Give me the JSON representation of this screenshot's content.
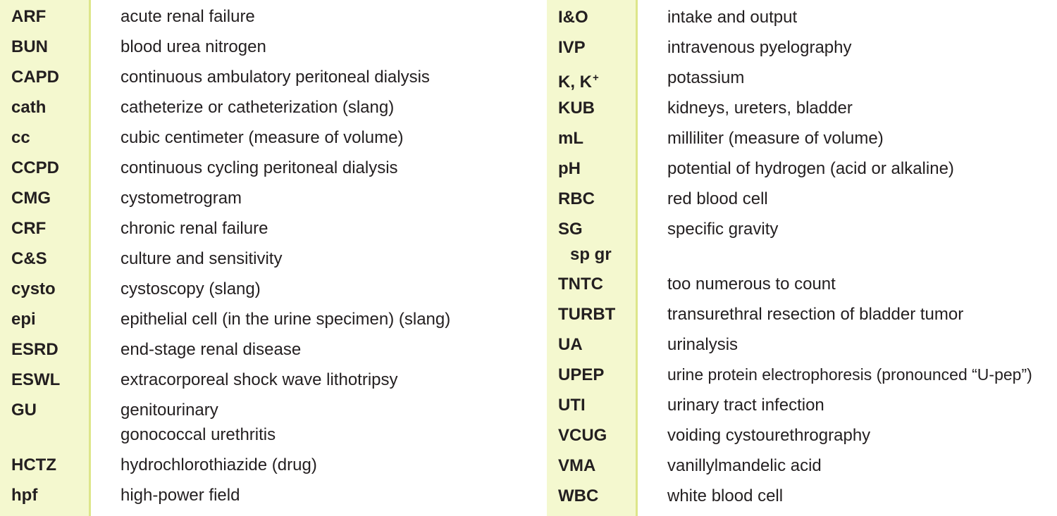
{
  "left_column": [
    {
      "abbr": "ARF",
      "def": "acute renal failure"
    },
    {
      "abbr": "BUN",
      "def": "blood urea nitrogen"
    },
    {
      "abbr": "CAPD",
      "def": "continuous ambulatory peritoneal dialysis"
    },
    {
      "abbr": "cath",
      "def": "catheterize or catheterization (slang)"
    },
    {
      "abbr": "cc",
      "def": "cubic centimeter (measure of volume)"
    },
    {
      "abbr": "CCPD",
      "def": "continuous cycling peritoneal dialysis"
    },
    {
      "abbr": "CMG",
      "def": "cystometrogram"
    },
    {
      "abbr": "CRF",
      "def": "chronic renal failure"
    },
    {
      "abbr": "C&S",
      "def": "culture and sensitivity"
    },
    {
      "abbr": "cysto",
      "def": "cystoscopy (slang)"
    },
    {
      "abbr": "epi",
      "def": "epithelial cell (in the urine specimen) (slang)"
    },
    {
      "abbr": "ESRD",
      "def": "end-stage renal disease"
    },
    {
      "abbr": "ESWL",
      "def": "extracorporeal shock wave lithotripsy"
    },
    {
      "abbr": "GU",
      "def": "genitourinary",
      "def2": "gonococcal urethritis"
    },
    {
      "abbr": "HCTZ",
      "def": "hydrochlorothiazide (drug)"
    },
    {
      "abbr": "hpf",
      "def": "high-power field"
    }
  ],
  "right_column": [
    {
      "abbr": "I&O",
      "def": "intake and output"
    },
    {
      "abbr": "IVP",
      "def": "intravenous pyelography"
    },
    {
      "abbr": "K, K",
      "abbr_sup": "+",
      "def": "potassium"
    },
    {
      "abbr": "KUB",
      "def": "kidneys, ureters, bladder"
    },
    {
      "abbr": "mL",
      "def": "milliliter (measure of volume)"
    },
    {
      "abbr": "pH",
      "def": "potential of hydrogen (acid or alkaline)"
    },
    {
      "abbr": "RBC",
      "def": "red blood cell"
    },
    {
      "abbr": "SG",
      "abbr2": "sp gr",
      "def": "specific gravity"
    },
    {
      "abbr": "TNTC",
      "def": "too numerous to count"
    },
    {
      "abbr": "TURBT",
      "def": "transurethral resection of bladder tumor"
    },
    {
      "abbr": "UA",
      "def": "urinalysis"
    },
    {
      "abbr": "UPEP",
      "def": "urine protein electrophoresis (pronounced “U-pep”)"
    },
    {
      "abbr": "UTI",
      "def": "urinary tract infection"
    },
    {
      "abbr": "VCUG",
      "def": "voiding cystourethrography"
    },
    {
      "abbr": "VMA",
      "def": "vanillylmandelic acid"
    },
    {
      "abbr": "WBC",
      "def": "white blood cell"
    }
  ]
}
